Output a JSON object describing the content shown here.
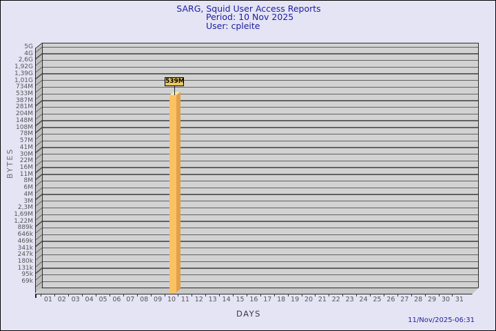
{
  "title": {
    "line1": "SARG, Squid User Access Reports",
    "line2": "Period: 10 Nov 2025",
    "line3": "User: cpleite"
  },
  "footer": {
    "timestamp": "11/Nov/2025-06:31"
  },
  "colors": {
    "background": "#e4e4f5",
    "title_text": "#1d1da0",
    "plot_bg": "#d2d2d2",
    "bar_front": "#fcc163",
    "bar_side": "#e2a04b",
    "bar_top": "#f9e4af",
    "bar_label_bg": "#ecc95f"
  },
  "chart_data": {
    "type": "bar",
    "title": "SARG, Squid User Access Reports",
    "xlabel": "DAYS",
    "ylabel": "BYTES",
    "categories": [
      "01",
      "02",
      "03",
      "04",
      "05",
      "06",
      "07",
      "08",
      "09",
      "10",
      "11",
      "12",
      "13",
      "14",
      "15",
      "16",
      "17",
      "18",
      "19",
      "20",
      "21",
      "22",
      "23",
      "24",
      "25",
      "26",
      "27",
      "28",
      "29",
      "30",
      "31"
    ],
    "y_tick_labels": [
      "5G",
      "4G",
      "2,6G",
      "1,92G",
      "1,39G",
      "1,01G",
      "734M",
      "533M",
      "387M",
      "281M",
      "204M",
      "148M",
      "108M",
      "78M",
      "57M",
      "41M",
      "30M",
      "22M",
      "16M",
      "11M",
      "8M",
      "6M",
      "4M",
      "3M",
      "2,3M",
      "1,69M",
      "1,22M",
      "889k",
      "646k",
      "469k",
      "341k",
      "247k",
      "180k",
      "131k",
      "95k",
      "69k"
    ],
    "y_scale": "nonlinear",
    "grid": true,
    "legend": false,
    "bars": [
      {
        "day": "10",
        "value_label": "539M"
      }
    ],
    "values_bytes_by_day": [
      0,
      0,
      0,
      0,
      0,
      0,
      0,
      0,
      0,
      539000000,
      0,
      0,
      0,
      0,
      0,
      0,
      0,
      0,
      0,
      0,
      0,
      0,
      0,
      0,
      0,
      0,
      0,
      0,
      0,
      0,
      0
    ]
  }
}
